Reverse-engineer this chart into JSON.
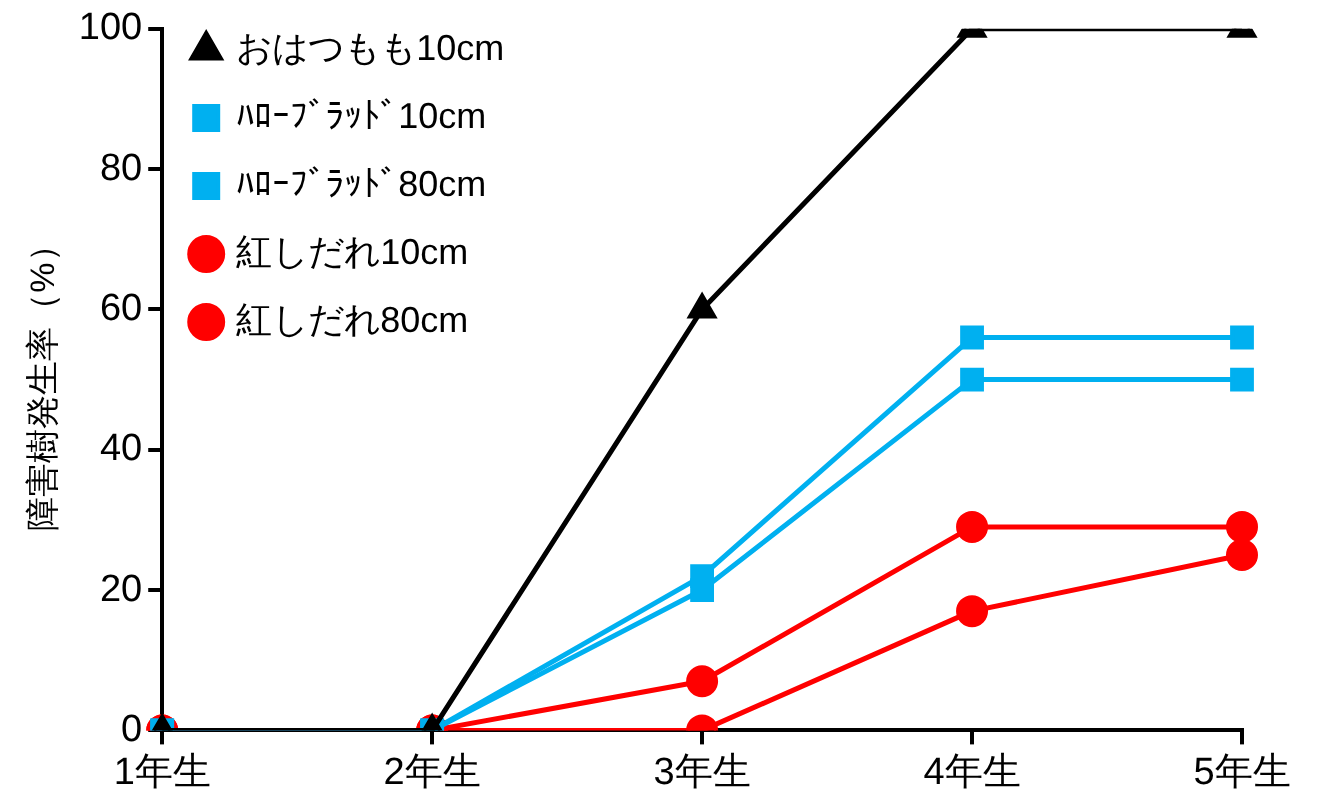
{
  "chart_data": {
    "type": "line",
    "ylabel": "障害樹発生率（%）",
    "categories": [
      "1年生",
      "2年生",
      "3年生",
      "4年生",
      "5年生"
    ],
    "series": [
      {
        "name": "おはつもも10cm",
        "color": "#000000",
        "marker": "triangle",
        "values": [
          0,
          0,
          60,
          100,
          100
        ]
      },
      {
        "name": "ﾊﾛｰﾌﾞﾗｯﾄﾞ10cm",
        "color": "#00b0f0",
        "marker": "square",
        "values": [
          0,
          0,
          22,
          56,
          56
        ]
      },
      {
        "name": "ﾊﾛｰﾌﾞﾗｯﾄﾞ80cm",
        "color": "#00b0f0",
        "marker": "square",
        "values": [
          0,
          0,
          20,
          50,
          50
        ]
      },
      {
        "name": "紅しだれ10cm",
        "color": "#ff0000",
        "marker": "circle",
        "values": [
          0,
          0,
          0,
          17,
          25
        ]
      },
      {
        "name": "紅しだれ80cm",
        "color": "#ff0000",
        "marker": "circle",
        "values": [
          0,
          0,
          7,
          29,
          29
        ]
      }
    ],
    "ylim": [
      0,
      100
    ],
    "yticks": [
      0,
      20,
      40,
      60,
      80,
      100
    ],
    "grid": false,
    "legend": "top left",
    "line_style": "solid"
  }
}
